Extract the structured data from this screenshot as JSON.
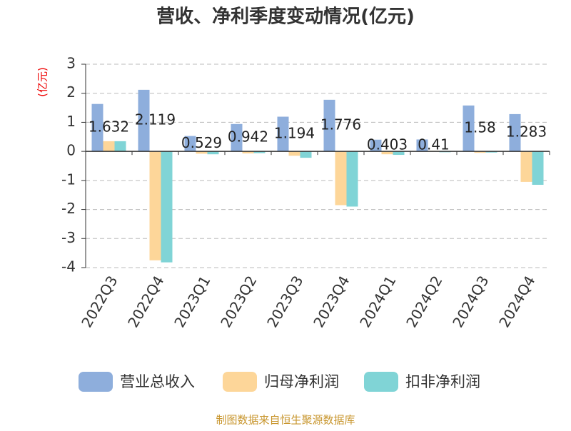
{
  "chart_data": {
    "type": "bar",
    "title": "营收、净利季度变动情况(亿元)",
    "y_label": "(亿元)",
    "categories": [
      "2022Q3",
      "2022Q4",
      "2023Q1",
      "2023Q2",
      "2023Q3",
      "2023Q4",
      "2024Q1",
      "2024Q2",
      "2024Q3",
      "2024Q4"
    ],
    "series": [
      {
        "name": "营业总收入",
        "color": "#8eaedc",
        "values": [
          1.632,
          2.119,
          0.529,
          0.942,
          1.194,
          1.776,
          0.403,
          0.41,
          1.58,
          1.283
        ],
        "labeled": true
      },
      {
        "name": "归母净利润",
        "color": "#fdd699",
        "values": [
          0.35,
          -3.75,
          -0.08,
          -0.07,
          -0.15,
          -1.85,
          -0.1,
          0.02,
          -0.05,
          -1.05
        ],
        "labeled": false
      },
      {
        "name": "扣非净利润",
        "color": "#80d4d6",
        "values": [
          0.35,
          -3.82,
          -0.1,
          -0.06,
          -0.22,
          -1.9,
          -0.12,
          -0.03,
          -0.04,
          -1.15
        ],
        "labeled": false
      }
    ],
    "ylim": [
      -4,
      3
    ],
    "yticks": [
      -4,
      -3,
      -2,
      -1,
      0,
      1,
      2,
      3
    ],
    "grid": true,
    "source": "制图数据来自恒生聚源数据库"
  }
}
